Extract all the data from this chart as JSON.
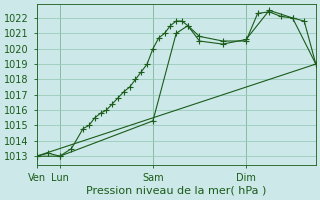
{
  "background_color": "#cce8e8",
  "grid_color": "#99ccbb",
  "line_color": "#1a5c1a",
  "marker_color": "#1a5c1a",
  "title": "Pression niveau de la mer( hPa )",
  "ylabel_values": [
    1013,
    1014,
    1015,
    1016,
    1017,
    1018,
    1019,
    1020,
    1021,
    1022
  ],
  "ylim": [
    1012.4,
    1022.9
  ],
  "xlim": [
    0,
    96
  ],
  "xlabel_ticks": [
    0,
    8,
    40,
    72
  ],
  "xlabel_labels": [
    "Ven",
    "Lun",
    "Sam",
    "Dim"
  ],
  "vlines": [
    8,
    40,
    72
  ],
  "series1_x": [
    0,
    4,
    8,
    12,
    16,
    18,
    20,
    22,
    24,
    26,
    28,
    30,
    32,
    34,
    36,
    38,
    40,
    42,
    44,
    46,
    48,
    50,
    52,
    56,
    64,
    72,
    76,
    80,
    84,
    88,
    92,
    96
  ],
  "series1_y": [
    1013.0,
    1013.2,
    1013.0,
    1013.5,
    1014.8,
    1015.0,
    1015.5,
    1015.8,
    1016.0,
    1016.4,
    1016.8,
    1017.2,
    1017.5,
    1018.0,
    1018.5,
    1019.0,
    1020.0,
    1020.7,
    1021.0,
    1021.5,
    1021.8,
    1021.8,
    1021.5,
    1020.8,
    1020.5,
    1020.5,
    1022.3,
    1022.4,
    1022.1,
    1022.0,
    1021.8,
    1019.0
  ],
  "series2_x": [
    0,
    8,
    40,
    48,
    52,
    56,
    64,
    72,
    80,
    88,
    96
  ],
  "series2_y": [
    1013.0,
    1013.0,
    1015.3,
    1021.0,
    1021.5,
    1020.5,
    1020.3,
    1020.6,
    1022.5,
    1022.0,
    1019.0
  ],
  "series3_x": [
    0,
    96
  ],
  "series3_y": [
    1013.0,
    1019.0
  ]
}
